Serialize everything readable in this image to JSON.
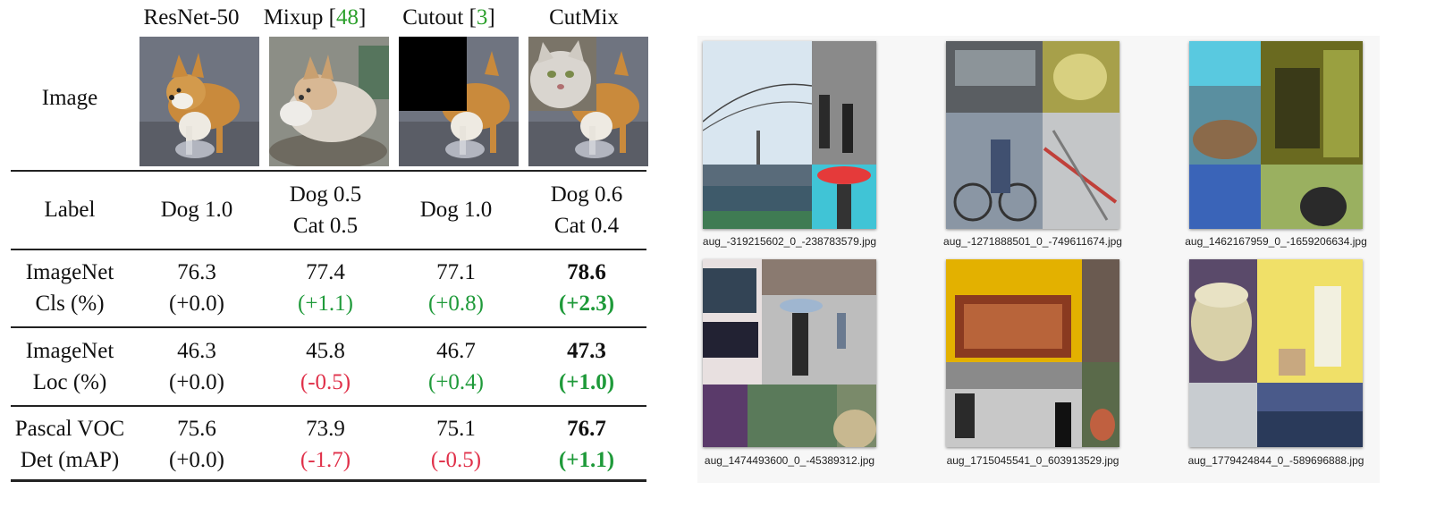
{
  "table": {
    "columns": [
      {
        "name": "ResNet-50",
        "ref": ""
      },
      {
        "name": "Mixup ",
        "ref": "48"
      },
      {
        "name": "Cutout ",
        "ref": "3"
      },
      {
        "name": "CutMix",
        "ref": ""
      }
    ],
    "row_labels": {
      "image": "Image",
      "label": "Label",
      "imagenet_cls": [
        "ImageNet",
        "Cls (%)"
      ],
      "imagenet_loc": [
        "ImageNet",
        "Loc (%)"
      ],
      "voc_det": [
        "Pascal VOC",
        "Det (mAP)"
      ]
    },
    "labels": [
      [
        "Dog 1.0"
      ],
      [
        "Dog 0.5",
        "Cat 0.5"
      ],
      [
        "Dog 1.0"
      ],
      [
        "Dog 0.6",
        "Cat 0.4"
      ]
    ],
    "imagenet_cls": [
      {
        "value": "76.3",
        "delta": "(+0.0)"
      },
      {
        "value": "77.4",
        "delta": "(+1.1)"
      },
      {
        "value": "77.1",
        "delta": "(+0.8)"
      },
      {
        "value": "78.6",
        "delta": "(+2.3)"
      }
    ],
    "imagenet_loc": [
      {
        "value": "46.3",
        "delta": "(+0.0)"
      },
      {
        "value": "45.8",
        "delta": "(-0.5)"
      },
      {
        "value": "46.7",
        "delta": "(+0.4)"
      },
      {
        "value": "47.3",
        "delta": "(+1.0)"
      }
    ],
    "voc_det": [
      {
        "value": "75.6",
        "delta": "(+0.0)"
      },
      {
        "value": "73.9",
        "delta": "(-1.7)"
      },
      {
        "value": "75.1",
        "delta": "(-0.5)"
      },
      {
        "value": "76.7",
        "delta": "(+1.1)"
      }
    ]
  },
  "colors": {
    "positive": "#1f9a3a",
    "negative": "#e0314a",
    "reference": "#2ca02c"
  },
  "files": [
    "aug_-319215602_0_-238783579.jpg",
    "aug_-1271888501_0_-749611674.jpg",
    "aug_1462167959_0_-1659206634.jpg",
    "aug_1474493600_0_-45389312.jpg",
    "aug_1715045541_0_603913529.jpg",
    "aug_1779424844_0_-589696888.jpg"
  ]
}
